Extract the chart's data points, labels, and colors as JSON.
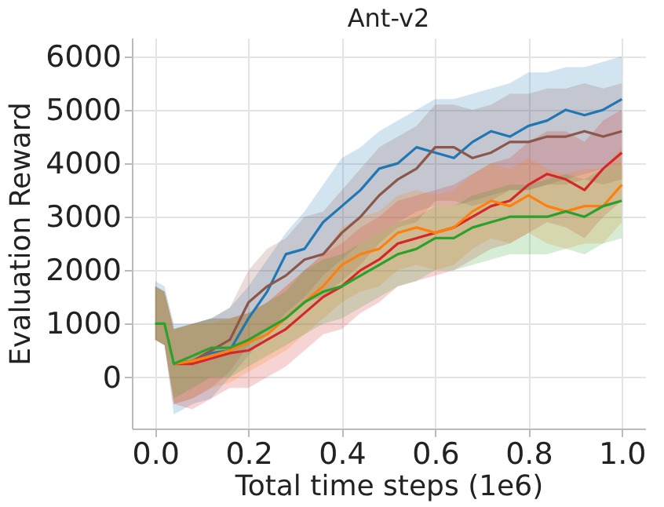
{
  "chart_data": {
    "type": "line",
    "title": "Ant-v2",
    "xlabel": "Total time steps (1e6)",
    "ylabel": "Evaluation Reward",
    "x": [
      0,
      0.02,
      0.04,
      0.08,
      0.12,
      0.16,
      0.2,
      0.24,
      0.28,
      0.32,
      0.36,
      0.4,
      0.44,
      0.48,
      0.52,
      0.56,
      0.6,
      0.64,
      0.68,
      0.72,
      0.76,
      0.8,
      0.84,
      0.88,
      0.92,
      0.96,
      1.0
    ],
    "series": [
      {
        "color": "#1f77b4",
        "values": [
          null,
          null,
          250,
          300,
          450,
          500,
          1100,
          1600,
          2300,
          2400,
          2900,
          3200,
          3500,
          3900,
          4000,
          4300,
          4200,
          4100,
          4400,
          4600,
          4500,
          4700,
          4800,
          5000,
          4900,
          5000,
          5200
        ],
        "lower": [
          700,
          600,
          -700,
          -500,
          -400,
          0,
          400,
          800,
          1200,
          1500,
          1900,
          2200,
          2500,
          2700,
          2900,
          3100,
          3200,
          3200,
          3300,
          3400,
          3500,
          3500,
          3600,
          3700,
          3800,
          3900,
          4000
        ],
        "upper": [
          1800,
          1700,
          1000,
          1000,
          1100,
          1300,
          1700,
          2200,
          2700,
          3100,
          3600,
          4100,
          4300,
          4600,
          4800,
          5000,
          5200,
          5200,
          5300,
          5400,
          5500,
          5700,
          5700,
          5800,
          5800,
          5900,
          6000
        ]
      },
      {
        "color": "#8c564b",
        "values": [
          null,
          null,
          250,
          300,
          500,
          700,
          1400,
          1700,
          1900,
          2200,
          2300,
          2700,
          3000,
          3400,
          3700,
          3900,
          4300,
          4300,
          4100,
          4200,
          4400,
          4400,
          4500,
          4500,
          4600,
          4500,
          4600
        ],
        "lower": [
          700,
          600,
          -500,
          -400,
          -200,
          100,
          600,
          900,
          1100,
          1400,
          1500,
          1800,
          2100,
          2500,
          2800,
          2900,
          3300,
          3300,
          3200,
          3300,
          3500,
          3500,
          3600,
          3600,
          3700,
          3600,
          3700
        ],
        "upper": [
          1700,
          1600,
          900,
          1000,
          1100,
          1300,
          2000,
          2400,
          2600,
          3000,
          3100,
          3500,
          3900,
          4300,
          4500,
          4700,
          5100,
          5100,
          5000,
          5100,
          5300,
          5300,
          5400,
          5400,
          5500,
          5400,
          5500
        ]
      },
      {
        "color": "#d62728",
        "values": [
          null,
          null,
          250,
          250,
          350,
          450,
          500,
          700,
          900,
          1200,
          1500,
          1700,
          2000,
          2200,
          2500,
          2600,
          2700,
          2800,
          3000,
          3200,
          3300,
          3600,
          3800,
          3700,
          3500,
          3900,
          4200
        ],
        "lower": [
          700,
          600,
          -500,
          -600,
          -400,
          -200,
          -200,
          0,
          200,
          500,
          800,
          900,
          1200,
          1400,
          1700,
          1800,
          1900,
          2000,
          2200,
          2400,
          2500,
          2700,
          2900,
          2800,
          2600,
          3000,
          3300
        ],
        "upper": [
          1700,
          1600,
          900,
          1000,
          1100,
          1100,
          1200,
          1400,
          1700,
          2000,
          2300,
          2500,
          2800,
          3000,
          3300,
          3400,
          3500,
          3600,
          3800,
          4000,
          4100,
          4400,
          4600,
          4600,
          4400,
          4800,
          5000
        ]
      },
      {
        "color": "#ff7f0e",
        "values": [
          null,
          null,
          250,
          300,
          400,
          500,
          650,
          800,
          1100,
          1400,
          1700,
          2100,
          2300,
          2400,
          2700,
          2800,
          2700,
          2800,
          3100,
          3300,
          3200,
          3400,
          3200,
          3100,
          3200,
          3200,
          3600
        ],
        "lower": [
          700,
          600,
          -500,
          -400,
          -200,
          -100,
          100,
          300,
          500,
          800,
          1100,
          1400,
          1600,
          1700,
          2000,
          2100,
          2000,
          2100,
          2400,
          2600,
          2500,
          2700,
          2500,
          2400,
          2500,
          2500,
          2900
        ],
        "upper": [
          1700,
          1600,
          900,
          1000,
          1000,
          1100,
          1200,
          1400,
          1700,
          2000,
          2300,
          2800,
          3000,
          3100,
          3400,
          3500,
          3400,
          3500,
          3800,
          4000,
          3900,
          4100,
          3900,
          3800,
          3900,
          3900,
          4300
        ]
      },
      {
        "color": "#2ca02c",
        "values": [
          1000,
          1000,
          250,
          400,
          550,
          550,
          700,
          900,
          1100,
          1400,
          1600,
          1700,
          1900,
          2100,
          2300,
          2400,
          2600,
          2600,
          2800,
          2900,
          3000,
          3000,
          3000,
          3100,
          3000,
          3200,
          3300
        ],
        "lower": [
          700,
          600,
          -400,
          -200,
          0,
          0,
          200,
          400,
          600,
          800,
          1000,
          1100,
          1300,
          1500,
          1700,
          1800,
          2000,
          2000,
          2100,
          2200,
          2300,
          2300,
          2300,
          2400,
          2300,
          2500,
          2600
        ],
        "upper": [
          1700,
          1600,
          900,
          1000,
          1100,
          1100,
          1200,
          1400,
          1600,
          2000,
          2200,
          2300,
          2500,
          2700,
          2900,
          3000,
          3200,
          3200,
          3400,
          3500,
          3600,
          3600,
          3700,
          3800,
          3700,
          3900,
          4000
        ]
      }
    ],
    "xlim": [
      -0.05,
      1.05
    ],
    "xticks": [
      {
        "value": 0,
        "label": "0.0"
      },
      {
        "value": 0.2,
        "label": "0.2"
      },
      {
        "value": 0.4,
        "label": "0.4"
      },
      {
        "value": 0.6,
        "label": "0.6"
      },
      {
        "value": 0.8,
        "label": "0.8"
      },
      {
        "value": 1,
        "label": "1.0"
      }
    ],
    "ylim": [
      -960,
      6350
    ],
    "yticks": [
      0,
      1000,
      2000,
      3000,
      4000,
      5000,
      6000
    ],
    "grid": true,
    "legend": false,
    "marker": "none",
    "line_style": "solid"
  }
}
